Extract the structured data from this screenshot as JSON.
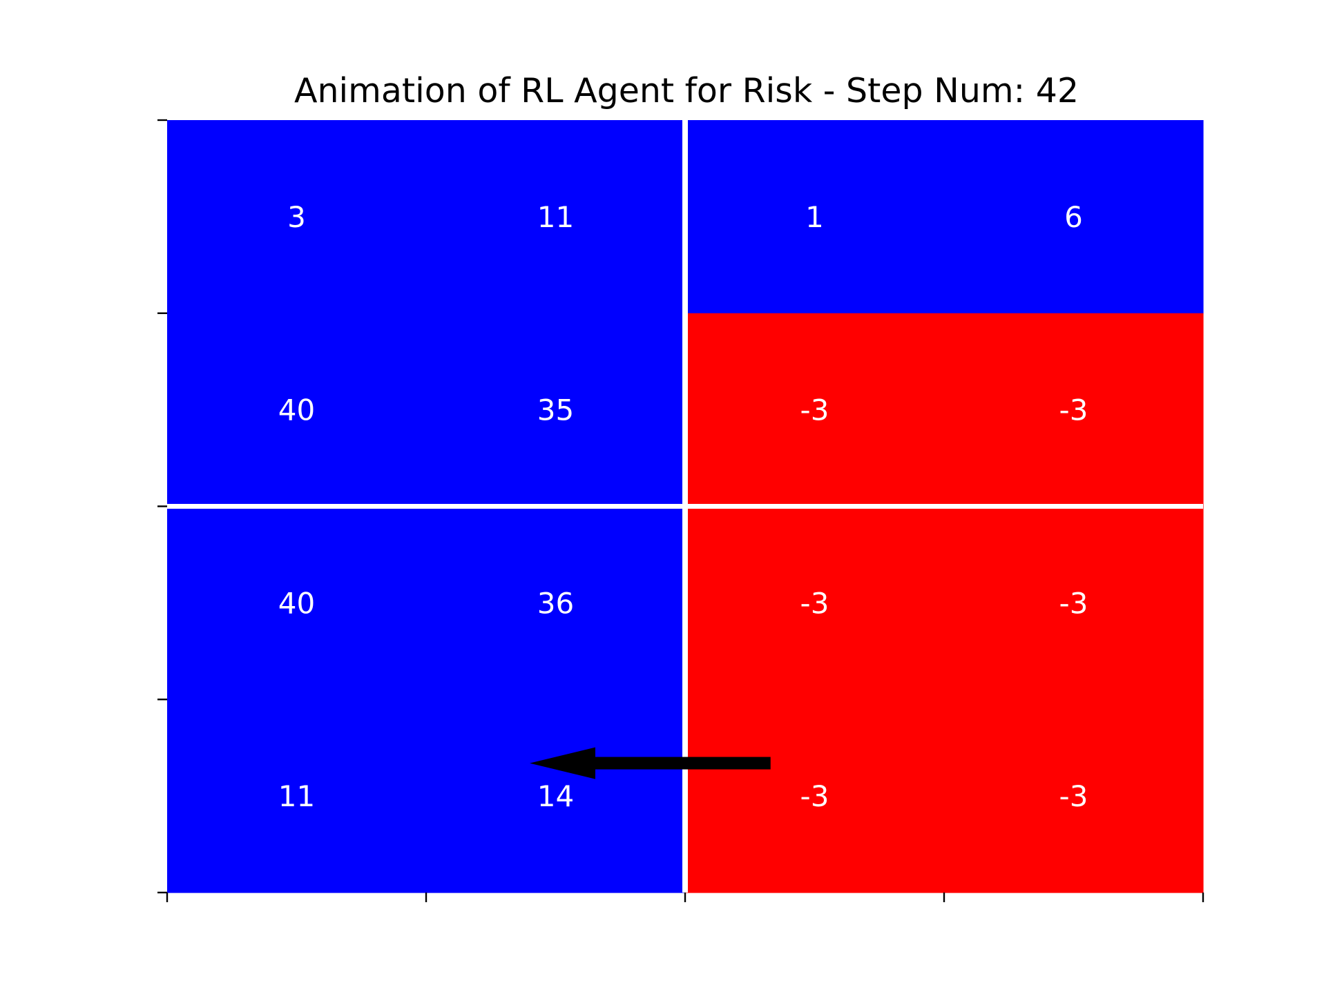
{
  "chart_data": {
    "type": "heatmap",
    "title": "Animation of RL Agent for Risk - Step Num: 42",
    "xlabel": "",
    "ylabel": "",
    "rows": 4,
    "cols": 4,
    "values": [
      [
        3,
        11,
        1,
        6
      ],
      [
        40,
        35,
        -3,
        -3
      ],
      [
        40,
        36,
        -3,
        -3
      ],
      [
        11,
        14,
        -3,
        -3
      ]
    ],
    "labels": [
      [
        "3",
        "11",
        "1",
        "6"
      ],
      [
        "40",
        "35",
        "-3",
        "-3"
      ],
      [
        "40",
        "36",
        "-3",
        "-3"
      ],
      [
        "11",
        "14",
        "-3",
        "-3"
      ]
    ],
    "owner": [
      [
        "blue",
        "blue",
        "blue",
        "blue"
      ],
      [
        "blue",
        "blue",
        "red",
        "red"
      ],
      [
        "blue",
        "blue",
        "red",
        "red"
      ],
      [
        "blue",
        "blue",
        "red",
        "red"
      ]
    ],
    "territory_dividers": {
      "vertical_after_col": 2,
      "horizontal_after_row": 2
    },
    "action_arrow": {
      "from": {
        "row": 3,
        "col": 2
      },
      "to": {
        "row": 3,
        "col": 1
      },
      "color": "#000000"
    },
    "colors": {
      "blue": "#0000ff",
      "red": "#ff0000",
      "divider": "#ffffff",
      "cell_text": "#ffffff"
    },
    "grid": false,
    "x_ticks": 5,
    "y_ticks": 5,
    "tick_labels_shown": false
  }
}
